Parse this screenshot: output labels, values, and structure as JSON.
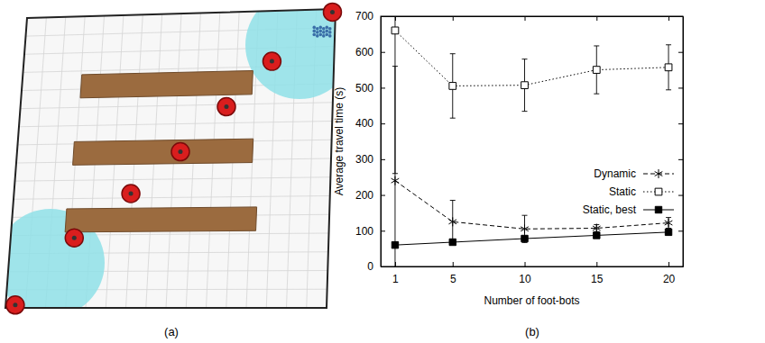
{
  "scene": {
    "label": "(a)"
  },
  "chart_data": {
    "type": "line",
    "label": "(b)",
    "x_label": "Number of foot-bots",
    "y_label": "Average travel time (s)",
    "x": [
      1,
      5,
      10,
      15,
      20
    ],
    "xlim": [
      0,
      21
    ],
    "xticks": [
      1,
      5,
      10,
      15,
      20
    ],
    "ylim": [
      0,
      700
    ],
    "yticks": [
      0,
      100,
      200,
      300,
      400,
      500,
      600,
      700
    ],
    "legend": "right",
    "series": [
      {
        "name": "Dynamic",
        "color": "#000000",
        "marker": "asterisk",
        "line_style": "dashed",
        "values": [
          240,
          125,
          105,
          107,
          122
        ],
        "errors": [
          320,
          60,
          38,
          10,
          15
        ]
      },
      {
        "name": "Static",
        "color": "#000000",
        "marker": "square-open",
        "line_style": "dotted",
        "values": [
          660,
          505,
          507,
          550,
          557
        ],
        "errors": [
          400,
          90,
          73,
          67,
          63
        ]
      },
      {
        "name": "Static, best",
        "color": "#000000",
        "marker": "square",
        "line_style": "solid",
        "values": [
          60,
          68,
          78,
          87,
          96
        ],
        "errors": [
          5,
          5,
          5,
          5,
          5
        ]
      }
    ]
  }
}
